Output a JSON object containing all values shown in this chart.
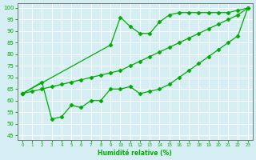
{
  "xlabel": "Humidité relative (%)",
  "bg_color": "#d5eef3",
  "grid_color": "#ffffff",
  "line_color": "#00aa00",
  "xlim": [
    -0.5,
    23.5
  ],
  "ylim": [
    43,
    102
  ],
  "yticks": [
    45,
    50,
    55,
    60,
    65,
    70,
    75,
    80,
    85,
    90,
    95,
    100
  ],
  "xticks": [
    0,
    1,
    2,
    3,
    4,
    5,
    6,
    7,
    8,
    9,
    10,
    11,
    12,
    13,
    14,
    15,
    16,
    17,
    18,
    19,
    20,
    21,
    22,
    23
  ],
  "s1_x": [
    0,
    2,
    3,
    4,
    5,
    6,
    7,
    8,
    9,
    10,
    11,
    12,
    13,
    14,
    15,
    16,
    17,
    18,
    19,
    20,
    21,
    22,
    23
  ],
  "s1_y": [
    63,
    68,
    52,
    53,
    58,
    57,
    60,
    60,
    65,
    65,
    66,
    63,
    64,
    65,
    67,
    70,
    73,
    76,
    79,
    82,
    85,
    88,
    100
  ],
  "s2_x": [
    0,
    1,
    2,
    3,
    4,
    5,
    6,
    7,
    8,
    9,
    10,
    11,
    12,
    13,
    14,
    15,
    16,
    17,
    18,
    19,
    20,
    21,
    22,
    23
  ],
  "s2_y": [
    63,
    64,
    65,
    66,
    67,
    68,
    69,
    70,
    71,
    72,
    73,
    75,
    77,
    79,
    81,
    83,
    85,
    87,
    89,
    91,
    93,
    95,
    97,
    100
  ],
  "s3_x": [
    0,
    9,
    10,
    11,
    12,
    13,
    14,
    15,
    16,
    17,
    18,
    19,
    20,
    21,
    22,
    23
  ],
  "s3_y": [
    63,
    84,
    96,
    92,
    89,
    89,
    94,
    97,
    98,
    98,
    98,
    98,
    98,
    98,
    99,
    100
  ]
}
